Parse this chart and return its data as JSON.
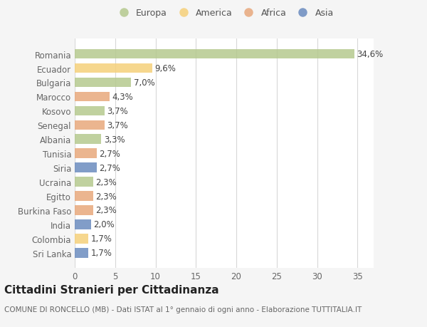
{
  "countries": [
    "Romania",
    "Ecuador",
    "Bulgaria",
    "Marocco",
    "Kosovo",
    "Senegal",
    "Albania",
    "Tunisia",
    "Siria",
    "Ucraina",
    "Egitto",
    "Burkina Faso",
    "India",
    "Colombia",
    "Sri Lanka"
  ],
  "values": [
    34.6,
    9.6,
    7.0,
    4.3,
    3.7,
    3.7,
    3.3,
    2.7,
    2.7,
    2.3,
    2.3,
    2.3,
    2.0,
    1.7,
    1.7
  ],
  "labels": [
    "34,6%",
    "9,6%",
    "7,0%",
    "4,3%",
    "3,7%",
    "3,7%",
    "3,3%",
    "2,7%",
    "2,7%",
    "2,3%",
    "2,3%",
    "2,3%",
    "2,0%",
    "1,7%",
    "1,7%"
  ],
  "continents": [
    "Europa",
    "America",
    "Europa",
    "Africa",
    "Europa",
    "Africa",
    "Europa",
    "Africa",
    "Asia",
    "Europa",
    "Africa",
    "Africa",
    "Asia",
    "America",
    "Asia"
  ],
  "colors": {
    "Europa": "#b5c98e",
    "America": "#f5d07a",
    "Africa": "#e8a87c",
    "Asia": "#6b8cbf"
  },
  "legend_order": [
    "Europa",
    "America",
    "Africa",
    "Asia"
  ],
  "xlim": [
    0,
    37
  ],
  "xticks": [
    0,
    5,
    10,
    15,
    20,
    25,
    30,
    35
  ],
  "title": "Cittadini Stranieri per Cittadinanza",
  "subtitle": "COMUNE DI RONCELLO (MB) - Dati ISTAT al 1° gennaio di ogni anno - Elaborazione TUTTITALIA.IT",
  "bg_color": "#f5f5f5",
  "plot_bg_color": "#ffffff",
  "grid_color": "#d8d8d8",
  "bar_alpha": 0.85,
  "label_fontsize": 8.5,
  "ytick_fontsize": 8.5,
  "xtick_fontsize": 8.5,
  "title_fontsize": 11,
  "subtitle_fontsize": 7.5,
  "legend_fontsize": 9
}
